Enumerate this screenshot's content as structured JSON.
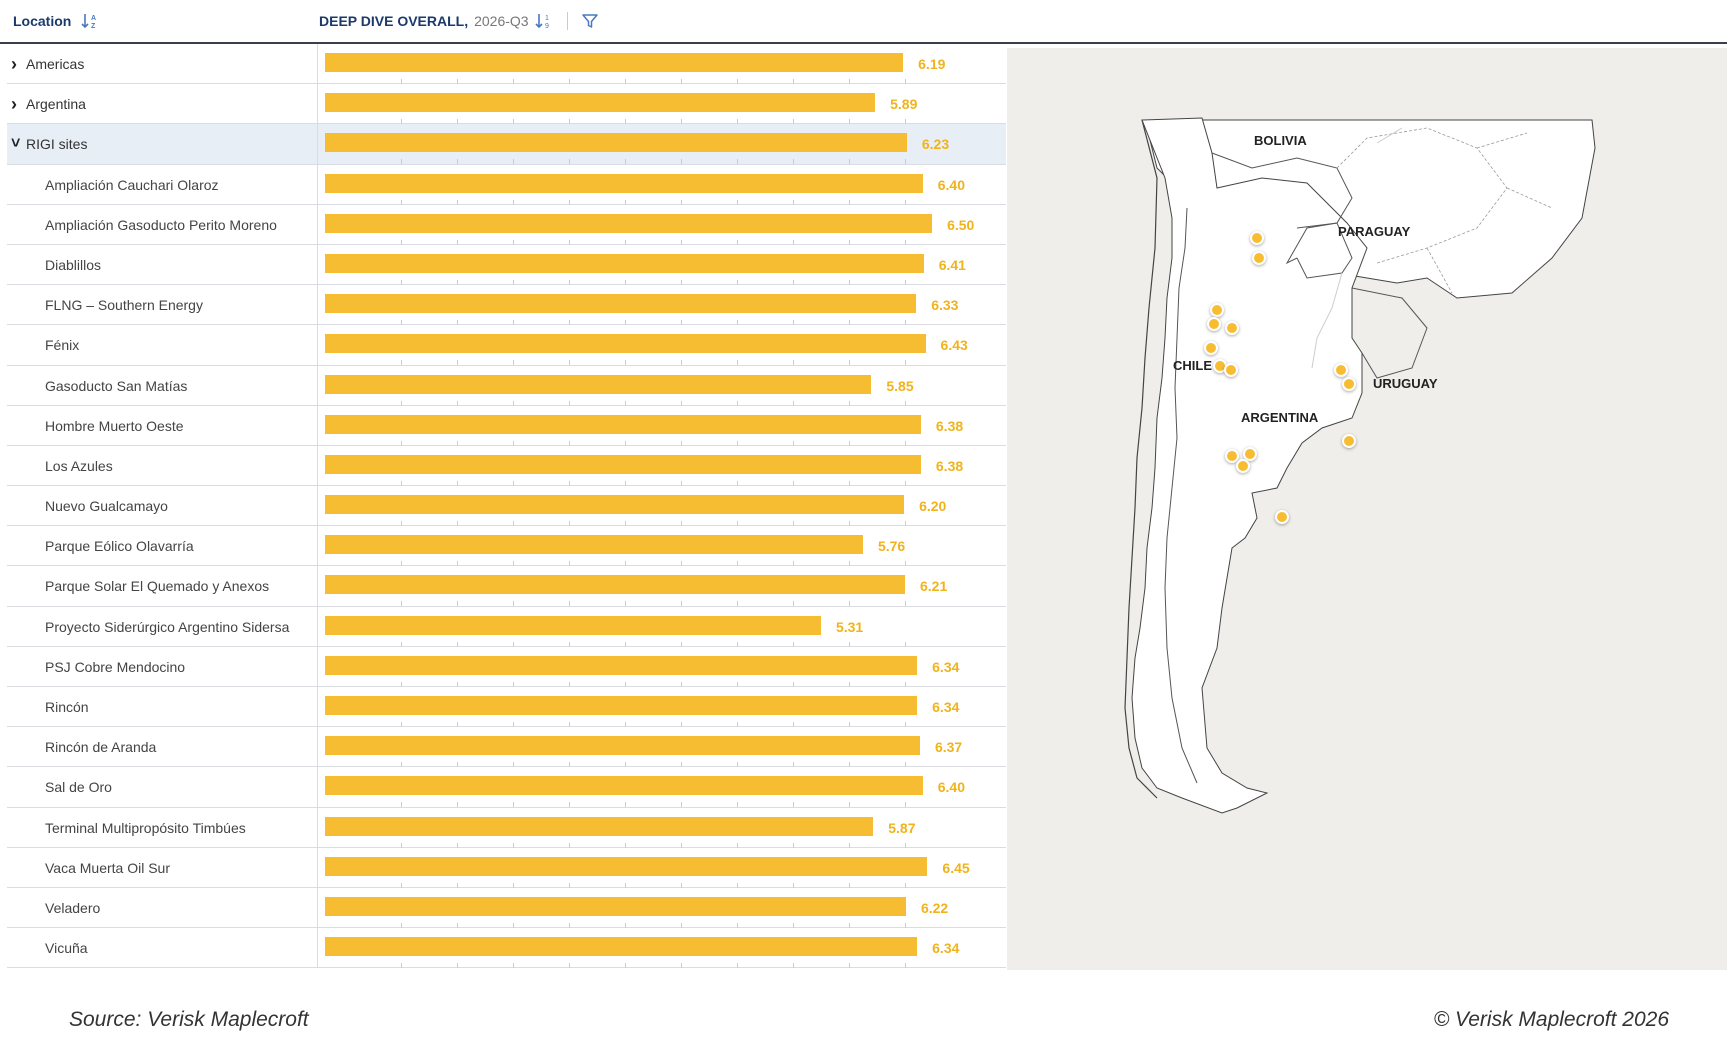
{
  "header": {
    "location_label": "Location",
    "metric_label": "DEEP DIVE OVERALL,",
    "period_label": "2026-Q3"
  },
  "chart_data": {
    "type": "bar",
    "orientation": "horizontal",
    "xlim": [
      0,
      10
    ],
    "categories": [
      "Americas",
      "Argentina",
      "RIGI sites",
      "Ampliación Cauchari Olaroz",
      "Ampliación Gasoducto Perito Moreno",
      "Diablillos",
      "FLNG – Southern Energy",
      "Fénix",
      "Gasoducto San Matías",
      "Hombre Muerto Oeste",
      "Los Azules",
      "Nuevo Gualcamayo",
      "Parque Eólico Olavarría",
      "Parque Solar El Quemado y Anexos",
      "Proyecto Siderúrgico Argentino Sidersa",
      "PSJ Cobre Mendocino",
      "Rincón",
      "Rincón de Aranda",
      "Sal de Oro",
      "Terminal Multipropósito Timbúes",
      "Vaca Muerta Oil Sur",
      "Veladero",
      "Vicuña"
    ],
    "values": [
      6.19,
      5.89,
      6.23,
      6.4,
      6.5,
      6.41,
      6.33,
      6.43,
      5.85,
      6.38,
      6.38,
      6.2,
      5.76,
      6.21,
      5.31,
      6.34,
      6.34,
      6.37,
      6.4,
      5.87,
      6.45,
      6.22,
      6.34
    ],
    "value_labels": [
      "6.19",
      "5.89",
      "6.23",
      "6.40",
      "6.50",
      "6.41",
      "6.33",
      "6.43",
      "5.85",
      "6.38",
      "6.38",
      "6.20",
      "5.76",
      "6.21",
      "5.31",
      "6.34",
      "6.34",
      "6.37",
      "6.40",
      "5.87",
      "6.45",
      "6.22",
      "6.34"
    ],
    "row_types": [
      "parent-collapsed",
      "parent-collapsed",
      "parent-expanded",
      "child",
      "child",
      "child",
      "child",
      "child",
      "child",
      "child",
      "child",
      "child",
      "child",
      "child",
      "child",
      "child",
      "child",
      "child",
      "child",
      "child",
      "child",
      "child",
      "child"
    ],
    "bar_color": "#f7bd32"
  },
  "map": {
    "labels": [
      "BOLIVIA",
      "PARAGUAY",
      "CHILE",
      "URUGUAY",
      "ARGENTINA"
    ],
    "marker_color": "#f7bd32"
  },
  "footer": {
    "source": "Source: Verisk Maplecroft",
    "copyright": "© Verisk Maplecroft 2026"
  }
}
